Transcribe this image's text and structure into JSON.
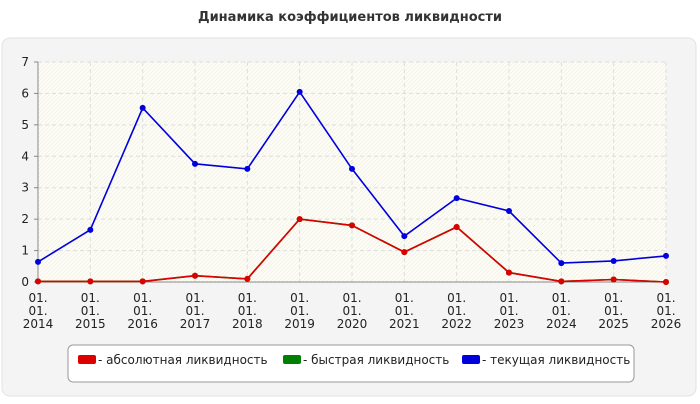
{
  "chart_data": {
    "type": "line",
    "title": "Динамика коэффициентов ликвидности",
    "categories": [
      "01.\n01.\n2014",
      "01.\n01.\n2015",
      "01.\n01.\n2016",
      "01.\n01.\n2017",
      "01.\n01.\n2018",
      "01.\n01.\n2019",
      "01.\n01.\n2020",
      "01.\n01.\n2021",
      "01.\n01.\n2022",
      "01.\n01.\n2023",
      "01.\n01.\n2024",
      "01.\n01.\n2025",
      "01.\n01.\n2026"
    ],
    "series": [
      {
        "name": "- быстрая ликвидность",
        "color": "#008000",
        "values": [
          0.02,
          0.02,
          0.02,
          0.2,
          0.1,
          2.0,
          1.8,
          0.95,
          1.75,
          0.3,
          0.02,
          0.08,
          0.0
        ]
      },
      {
        "name": "- текущая ликвидность",
        "color": "#0000dd",
        "values": [
          0.64,
          1.66,
          5.54,
          3.76,
          3.6,
          6.05,
          3.6,
          1.46,
          2.67,
          2.26,
          0.6,
          0.67,
          0.83
        ]
      },
      {
        "name": "- абсолютная ликвидность",
        "color": "#dd0000",
        "values": [
          0.02,
          0.02,
          0.02,
          0.2,
          0.1,
          2.0,
          1.8,
          0.95,
          1.75,
          0.3,
          0.02,
          0.08,
          0.0
        ]
      }
    ],
    "legend_order": [
      2,
      0,
      1
    ],
    "ylim": [
      0,
      7
    ],
    "yticks": [
      0,
      1,
      2,
      3,
      4,
      5,
      6,
      7
    ],
    "grid": true
  }
}
